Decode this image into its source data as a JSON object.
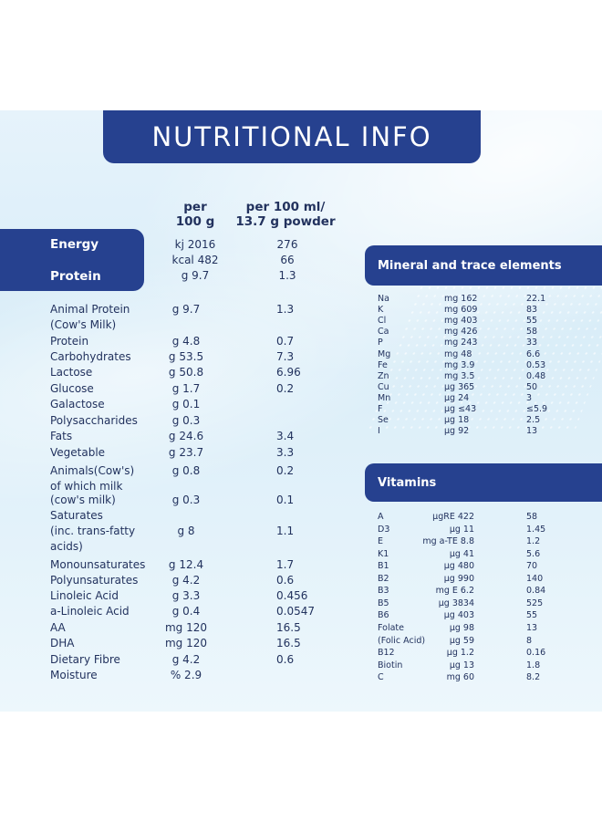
{
  "title": "NUTRITIONAL INFO",
  "headers": {
    "per100g": "per\n100 g",
    "per100ml": "per 100 ml/\n13.7 g powder"
  },
  "energy_protein": {
    "energy_label": "Energy",
    "protein_label": "Protein",
    "rows": [
      {
        "a": "kj 2016",
        "b": "276"
      },
      {
        "a": "kcal 482",
        "b": "66"
      },
      {
        "a": "g 9.7",
        "b": "1.3"
      }
    ]
  },
  "nutrients": [
    {
      "name": "Animal Protein\n(Cow's Milk)",
      "a": "g 9.7",
      "b": "1.3"
    },
    {
      "name": "Protein",
      "a": "g 4.8",
      "b": "0.7"
    },
    {
      "name": "Carbohydrates",
      "a": "g 53.5",
      "b": "7.3"
    },
    {
      "name": "Lactose",
      "a": "g 50.8",
      "b": "6.96"
    },
    {
      "name": "Glucose",
      "a": "g 1.7",
      "b": "0.2"
    },
    {
      "name": "Galactose",
      "a": "g 0.1",
      "b": ""
    },
    {
      "name": "Polysaccharides",
      "a": "g 0.3",
      "b": ""
    },
    {
      "name": "Fats",
      "a": "g 24.6",
      "b": "3.4"
    },
    {
      "name": "Vegetable",
      "a": "g 23.7",
      "b": "3.3"
    },
    {
      "name": "Animals(Cow's)\nof which milk",
      "a": "g 0.8",
      "b": "0.2"
    },
    {
      "name": "(cow's milk)",
      "a": "g 0.3",
      "b": "0.1"
    },
    {
      "name": "Saturates\n(inc. trans-fatty\nacids)",
      "a": "g 8",
      "b": "1.1"
    },
    {
      "name": "Monounsaturates",
      "a": "g 12.4",
      "b": "1.7"
    },
    {
      "name": "Polyunsaturates",
      "a": "g 4.2",
      "b": "0.6"
    },
    {
      "name": "Linoleic Acid",
      "a": "g 3.3",
      "b": "0.456"
    },
    {
      "name": "a-Linoleic Acid",
      "a": "g 0.4",
      "b": "0.0547"
    },
    {
      "name": "AA",
      "a": "mg 120",
      "b": "16.5"
    },
    {
      "name": "DHA",
      "a": "mg 120",
      "b": "16.5"
    },
    {
      "name": "Dietary Fibre",
      "a": "g 4.2",
      "b": "0.6"
    },
    {
      "name": "Moisture",
      "a": "% 2.9",
      "b": ""
    }
  ],
  "minerals": {
    "title": "Mineral and trace elements",
    "rows": [
      {
        "name": "Na",
        "a": "mg 162",
        "b": "22.1"
      },
      {
        "name": "K",
        "a": "mg 609",
        "b": "83"
      },
      {
        "name": "Cl",
        "a": "mg 403",
        "b": "55"
      },
      {
        "name": "Ca",
        "a": "mg 426",
        "b": "58"
      },
      {
        "name": "P",
        "a": "mg 243",
        "b": "33"
      },
      {
        "name": "Mg",
        "a": "mg 48",
        "b": "6.6"
      },
      {
        "name": "Fe",
        "a": "mg 3.9",
        "b": "0.53"
      },
      {
        "name": "Zn",
        "a": "mg 3.5",
        "b": "0.48"
      },
      {
        "name": "Cu",
        "a": "µg 365",
        "b": "50"
      },
      {
        "name": "Mn",
        "a": "µg 24",
        "b": "3"
      },
      {
        "name": "F",
        "a": "µg ≤43",
        "b": "≤5.9"
      },
      {
        "name": "Se",
        "a": "µg 18",
        "b": "2.5"
      },
      {
        "name": "I",
        "a": "µg 92",
        "b": "13"
      }
    ]
  },
  "vitamins": {
    "title": "Vitamins",
    "rows": [
      {
        "name": "A",
        "a": "µgRE 422",
        "b": "58"
      },
      {
        "name": "D3",
        "a": "µg 11",
        "b": "1.45"
      },
      {
        "name": "E",
        "a": "mg a-TE 8.8",
        "b": "1.2"
      },
      {
        "name": "K1",
        "a": "µg 41",
        "b": "5.6"
      },
      {
        "name": "B1",
        "a": "µg 480",
        "b": "70"
      },
      {
        "name": "B2",
        "a": "µg 990",
        "b": "140"
      },
      {
        "name": "B3",
        "a": "mg E 6.2",
        "b": "0.84"
      },
      {
        "name": "B5",
        "a": "µg 3834",
        "b": "525"
      },
      {
        "name": "B6",
        "a": "µg 403",
        "b": "55"
      },
      {
        "name": "Folate",
        "a": "µg 98",
        "b": "13"
      },
      {
        "name": "(Folic Acid)",
        "a": "µg 59",
        "b": "8"
      },
      {
        "name": "B12",
        "a": "µg 1.2",
        "b": "0.16"
      },
      {
        "name": "Biotin",
        "a": "µg 13",
        "b": "1.8"
      },
      {
        "name": "C",
        "a": "mg 60",
        "b": "8.2"
      }
    ]
  }
}
